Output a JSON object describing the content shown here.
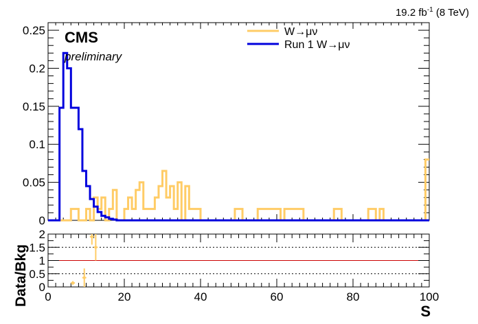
{
  "lumi": {
    "prefix": "19.2 fb",
    "exp": "-1",
    "suffix": " (8 TeV)"
  },
  "labels": {
    "cms": "CMS",
    "preliminary": "preliminary"
  },
  "legend": [
    {
      "name": "W→μν",
      "color": "#ffcc66"
    },
    {
      "name": "Run 1 W→μν",
      "color": "#0000dd"
    }
  ],
  "chart_data": [
    {
      "type": "step-histogram",
      "xlim": [
        0,
        100
      ],
      "ylim": [
        0,
        0.26
      ],
      "yticks": [
        "0",
        "0.05",
        "0.1",
        "0.15",
        "0.2",
        "0.25"
      ],
      "xlabel": "",
      "ylabel": "",
      "series": [
        {
          "name": "W→μν",
          "color": "#ffcc66",
          "edges": [
            0,
            6,
            8,
            9,
            10,
            11,
            12,
            13,
            14,
            15,
            16,
            17,
            18,
            19,
            20,
            21,
            22,
            23,
            24,
            25,
            28,
            29,
            30,
            31,
            32,
            33,
            34,
            35,
            36,
            37,
            38,
            39,
            40,
            49,
            51,
            55,
            61,
            62,
            67,
            75,
            77,
            84,
            86,
            87,
            88,
            99,
            100
          ],
          "values": [
            0,
            0.015,
            0,
            0,
            0.015,
            0,
            0.03,
            0.015,
            0.03,
            0,
            0.015,
            0.04,
            0,
            0,
            0.015,
            0.03,
            0.015,
            0.04,
            0.05,
            0.015,
            0.03,
            0.045,
            0.065,
            0.03,
            0.045,
            0.015,
            0.05,
            0,
            0.045,
            0.015,
            0.015,
            0.015,
            0,
            0.015,
            0,
            0.015,
            0,
            0.015,
            0,
            0.015,
            0,
            0.015,
            0,
            0.015,
            0,
            0.08
          ]
        },
        {
          "name": "Run 1 W→μν",
          "color": "#0000dd",
          "edges": [
            0,
            3,
            4,
            5,
            6,
            7,
            8,
            9,
            10,
            11,
            12,
            13,
            14,
            15,
            16,
            17,
            18,
            100
          ],
          "values": [
            0,
            0.148,
            0.22,
            0.2,
            0.148,
            0.148,
            0.12,
            0.065,
            0.045,
            0.028,
            0.018,
            0.011,
            0.006,
            0.004,
            0.002,
            0.001,
            0
          ]
        }
      ]
    },
    {
      "type": "scatter",
      "name": "ratio",
      "xlim": [
        0,
        100
      ],
      "ylim": [
        0,
        2
      ],
      "yticks": [
        "0",
        "0.5",
        "1",
        "1.5",
        "2"
      ],
      "xticks": [
        "0",
        "20",
        "40",
        "60",
        "80",
        "100"
      ],
      "xlabel": "S",
      "ylabel": "Data/Bkg",
      "reference_line": 1,
      "dotted_lines": [
        0.5,
        1.5
      ],
      "points": [
        {
          "x": 6.5,
          "y": 0.15,
          "err": 0.07
        },
        {
          "x": 9.5,
          "y": 0.35,
          "err": 0.35
        },
        {
          "x": 11.5,
          "y": 1.9,
          "err": 0.3
        },
        {
          "x": 12.5,
          "y": 1.5,
          "err": 0.5
        }
      ]
    }
  ]
}
